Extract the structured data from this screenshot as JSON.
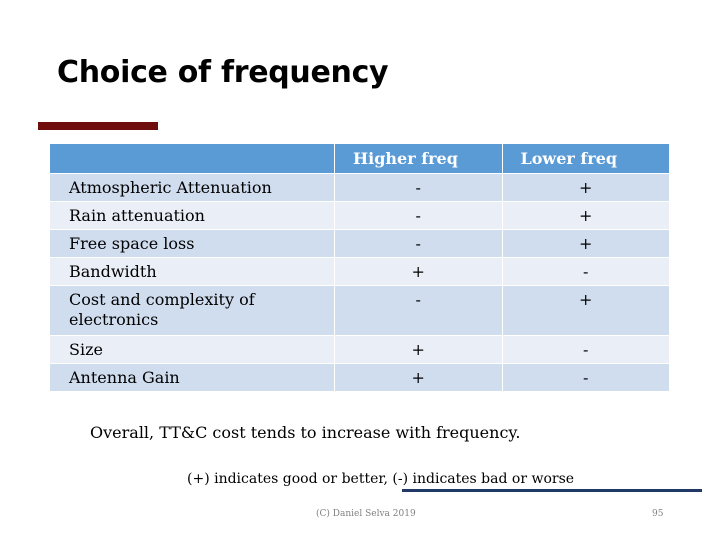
{
  "slide": {
    "title": "Choice of frequency",
    "table": {
      "header": [
        "",
        "Higher freq",
        "Lower freq"
      ],
      "rows": [
        {
          "label": "Atmospheric Attenuation",
          "higher": "-",
          "lower": "+"
        },
        {
          "label": "Rain attenuation",
          "higher": "-",
          "lower": "+"
        },
        {
          "label": "Free space loss",
          "higher": "-",
          "lower": "+"
        },
        {
          "label": "Bandwidth",
          "higher": "+",
          "lower": "-"
        },
        {
          "label": "Cost and complexity of electronics",
          "higher": "-",
          "lower": "+"
        },
        {
          "label": "Size",
          "higher": "+",
          "lower": "-"
        },
        {
          "label": "Antenna Gain",
          "higher": "+",
          "lower": "-"
        }
      ]
    },
    "summary": "Overall, TT&C cost tends to increase with frequency.",
    "legend": "(+) indicates good or better, (-) indicates bad or worse",
    "footer": "(C) Daniel Selva 2019",
    "page_number": "95"
  },
  "colors": {
    "accent_bar": "#6f0d0d",
    "table_header": "#5b9bd5",
    "row_odd": "#d0ddef",
    "row_even": "#e9eef7",
    "legend_line": "#1f3864"
  }
}
